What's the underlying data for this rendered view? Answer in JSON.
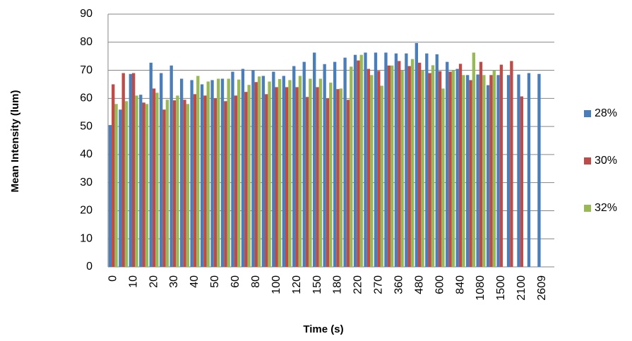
{
  "chart_data": {
    "type": "bar",
    "x_label": "Time (s)",
    "y_label": "Mean Intensity (lum)",
    "categories": [
      "0",
      null,
      "10",
      null,
      "20",
      null,
      "30",
      null,
      "40",
      null,
      "50",
      null,
      "60",
      null,
      "80",
      null,
      "100",
      null,
      "120",
      null,
      "150",
      null,
      "180",
      null,
      "220",
      null,
      "270",
      null,
      "360",
      null,
      "480",
      null,
      "600",
      null,
      "840",
      null,
      "1080",
      null,
      "1500",
      null,
      "2100",
      null,
      "2609"
    ],
    "series": [
      {
        "name": "28%",
        "color": "#4a7ebb",
        "values": [
          50.5,
          56,
          68.7,
          61.3,
          72.7,
          69,
          71.7,
          67,
          66.5,
          65,
          66.5,
          67,
          69.5,
          70.5,
          70,
          68,
          69.5,
          68,
          71.5,
          73,
          76.3,
          72.2,
          73,
          74.5,
          75.5,
          76.3,
          76.3,
          76.3,
          76,
          76,
          79.7,
          76,
          75.7,
          73,
          70.5,
          68.3,
          68.5,
          64.7,
          68.3,
          68.3,
          68.5,
          69,
          68.7
        ]
      },
      {
        "name": "30%",
        "color": "#be4b48",
        "values": [
          65,
          69,
          69,
          58.5,
          63.5,
          56,
          59.3,
          59.5,
          61.5,
          61,
          60,
          59,
          61,
          62.3,
          65.8,
          61.5,
          64,
          64,
          64,
          60.5,
          64,
          60,
          63.3,
          59.5,
          73.5,
          70.5,
          69.8,
          71.7,
          73.3,
          71.5,
          72.7,
          69,
          69.7,
          69.5,
          72.3,
          66.5,
          73,
          68.3,
          72,
          73.3,
          60.7,
          null,
          null
        ]
      },
      {
        "name": "32%",
        "color": "#98b954",
        "values": [
          58,
          59,
          61,
          58,
          62,
          59.5,
          61,
          58,
          68,
          66,
          67,
          67,
          66.7,
          64.8,
          67.8,
          66,
          66.9,
          66.5,
          68,
          67,
          67,
          65.6,
          63.5,
          71.3,
          75.5,
          68.3,
          64.5,
          71.7,
          70,
          74,
          70,
          71.8,
          63.5,
          70,
          68.3,
          76.3,
          68.3,
          70,
          null,
          null,
          null,
          null,
          null
        ]
      }
    ],
    "ylim": [
      0,
      90
    ],
    "yticks": [
      0,
      10,
      20,
      30,
      40,
      50,
      60,
      70,
      80,
      90
    ],
    "grid": true,
    "legend": "right"
  }
}
